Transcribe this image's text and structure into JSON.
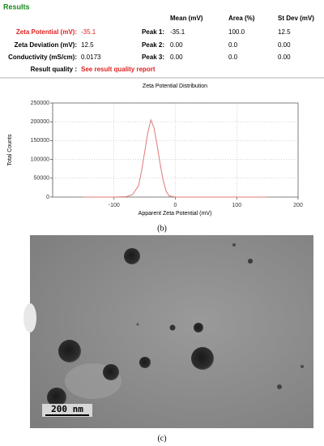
{
  "results": {
    "title": "Results",
    "headers": [
      "Mean (mV)",
      "Area (%)",
      "St Dev (mV)"
    ],
    "rows": [
      {
        "label": "Zeta Potential (mV):",
        "value": "-35.1",
        "peak": "Peak 1:",
        "cells": [
          "-35.1",
          "100.0",
          "12.5"
        ]
      },
      {
        "label": "Zeta Deviation (mV):",
        "value": "12.5",
        "peak": "Peak 2:",
        "cells": [
          "0.00",
          "0.0",
          "0.00"
        ]
      },
      {
        "label": "Conductivity (mS/cm):",
        "value": "0.0173",
        "peak": "Peak 3:",
        "cells": [
          "0.00",
          "0.0",
          "0.00"
        ]
      }
    ],
    "quality_label": "Result quality :",
    "quality_value": "See result quality report"
  },
  "chart_data": {
    "type": "line",
    "title": "Zeta Potential Distribution",
    "x_label": "Apparent Zeta Potential (mV)",
    "y_label": "Total Counts",
    "x": [
      -150,
      -100,
      -80,
      -70,
      -60,
      -55,
      -50,
      -45,
      -40,
      -35,
      -30,
      -25,
      -20,
      -15,
      -10,
      0,
      50,
      100,
      150
    ],
    "values": [
      0,
      0,
      1000,
      6000,
      30000,
      70000,
      120000,
      170000,
      205000,
      185000,
      140000,
      90000,
      45000,
      15000,
      3000,
      0,
      0,
      0,
      0
    ],
    "color": "#e07878",
    "xlim": [
      -200,
      200
    ],
    "xticks": [
      -100,
      0,
      100,
      200
    ],
    "ylim": [
      0,
      250000
    ],
    "yticks": [
      0,
      50000,
      100000,
      150000,
      200000,
      250000
    ],
    "grid": true
  },
  "figure": {
    "panel_labels": [
      "(b)",
      "(c)"
    ],
    "scale_bar": "200 nm"
  }
}
